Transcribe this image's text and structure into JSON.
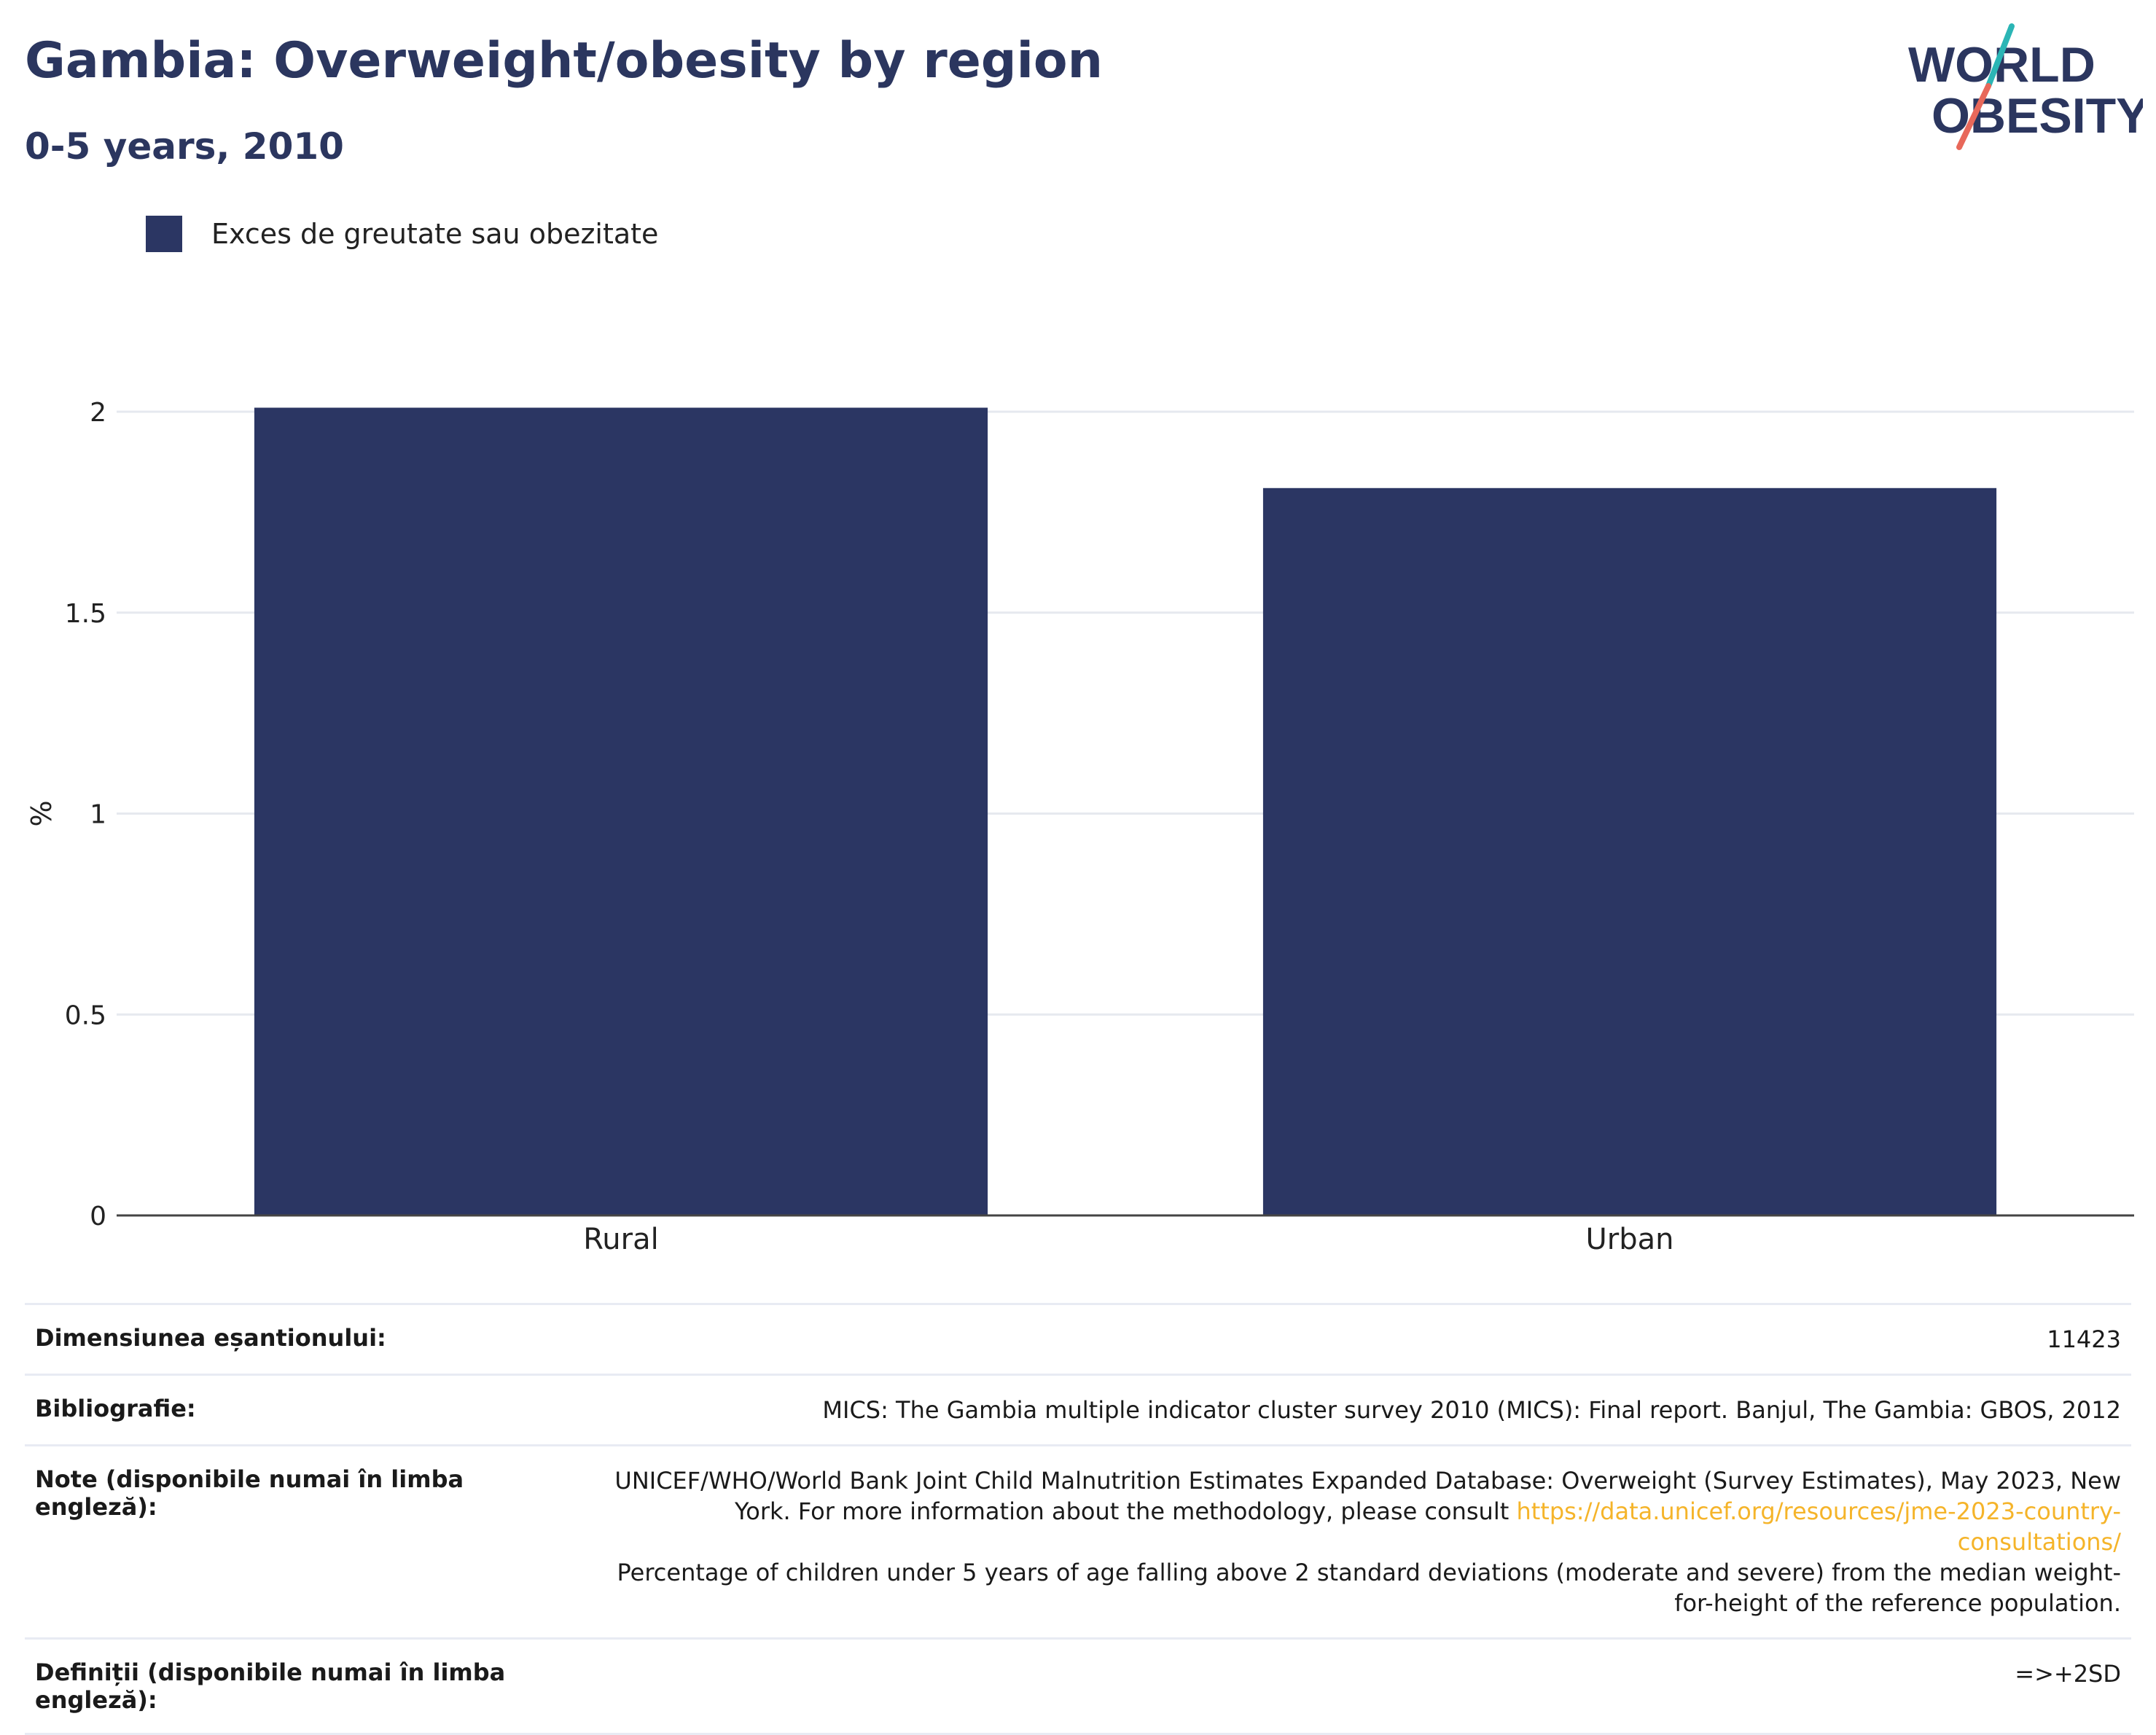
{
  "header": {
    "title": "Gambia: Overweight/obesity by region",
    "subtitle": "0-5 years, 2010",
    "logo_line1": "WORLD",
    "logo_line2": "OBESITY"
  },
  "legend": {
    "label": "Exces de greutate sau obezitate"
  },
  "chart_data": {
    "type": "bar",
    "categories": [
      "Rural",
      "Urban"
    ],
    "series": [
      {
        "name": "Exces de greutate sau obezitate",
        "values": [
          2.01,
          1.81
        ],
        "color": "#2b3663"
      }
    ],
    "ylabel": "%",
    "xlabel": "",
    "ylim": [
      0,
      2
    ],
    "yticks": [
      0,
      0.5,
      1,
      1.5,
      2
    ],
    "ytick_labels": [
      "0",
      "0.5",
      "1",
      "1.5",
      "2"
    ],
    "grid": true,
    "legend_position": "top-left"
  },
  "meta": {
    "sample_label": "Dimensiunea eșantionului:",
    "sample_value": "11423",
    "bib_label": "Bibliografie:",
    "bib_value": "MICS: The Gambia multiple indicator cluster survey 2010 (MICS): Final report. Banjul, The Gambia: GBOS, 2012",
    "notes_label": "Note (disponibile numai în limba engleză):",
    "notes_text1": "UNICEF/WHO/World Bank Joint Child Malnutrition Estimates Expanded Database: Overweight (Survey Estimates), May 2023, New York. For more information about the methodology, please consult ",
    "notes_link": "https://data.unicef.org/resources/jme-2023-country-consultations/",
    "notes_text2": "Percentage of children under 5 years of age falling above 2 standard deviations (moderate and severe) from the median weight-for-height of the reference population.",
    "defs_label": "Definiții (disponibile numai în limba engleză):",
    "defs_value": "=>+2SD"
  },
  "colors": {
    "brand_navy": "#2b365f",
    "bar": "#2b3663",
    "link": "#f5b42a",
    "logo_teal": "#2bb5b5",
    "logo_coral": "#e8685a"
  }
}
